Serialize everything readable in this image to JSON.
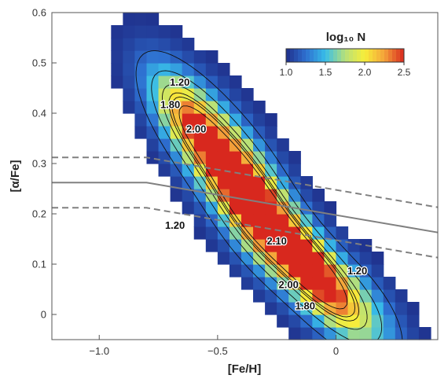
{
  "chart_data": {
    "type": "heatmap",
    "title": "",
    "xlabel": "[Fe/H]",
    "ylabel": "[α/Fe]",
    "xlim": [
      -1.2,
      0.43
    ],
    "ylim": [
      -0.05,
      0.6
    ],
    "x_ticks": [
      -1.0,
      -0.5,
      0.0
    ],
    "x_tick_labels": [
      "−1.0",
      "−0.5",
      "0"
    ],
    "y_ticks": [
      0.0,
      0.1,
      0.2,
      0.3,
      0.4,
      0.5,
      0.6
    ],
    "y_tick_labels": [
      "0",
      "0.1",
      "0.2",
      "0.3",
      "0.4",
      "0.5",
      "0.6"
    ],
    "colorbar": {
      "title": "log₁₀ N",
      "min": 1.0,
      "max": 2.5,
      "ticks": [
        1.0,
        1.5,
        2.0,
        2.5
      ],
      "tick_labels": [
        "1.0",
        "1.5",
        "2.0",
        "2.5"
      ],
      "colormap": [
        "#1f2f8a",
        "#2e6fd0",
        "#38bde8",
        "#b6e07a",
        "#f7ee3a",
        "#f4a23a",
        "#d8281e"
      ]
    },
    "density_model": {
      "background_level": 1.0,
      "threshold": 1.02,
      "blobs": [
        {
          "fe_h": -0.5,
          "alpha_fe": 0.33,
          "sigma_along": 0.16,
          "sigma_across": 0.055,
          "amplitude": 1.2
        },
        {
          "fe_h": -0.65,
          "alpha_fe": 0.4,
          "sigma_along": 0.12,
          "sigma_across": 0.045,
          "amplitude": 0.6
        },
        {
          "fe_h": -0.2,
          "alpha_fe": 0.13,
          "sigma_along": 0.22,
          "sigma_across": 0.05,
          "amplitude": 1.45
        },
        {
          "fe_h": -0.05,
          "alpha_fe": 0.07,
          "sigma_along": 0.15,
          "sigma_across": 0.04,
          "amplitude": 0.7
        },
        {
          "fe_h": -0.35,
          "alpha_fe": 0.22,
          "sigma_along": 0.12,
          "sigma_across": 0.06,
          "amplitude": 0.7
        },
        {
          "fe_h": 0.15,
          "alpha_fe": 0.02,
          "sigma_along": 0.12,
          "sigma_across": 0.04,
          "amplitude": 0.25
        }
      ],
      "ridge_direction": [
        1.0,
        -0.5
      ],
      "bin_size_fe_h": 0.05,
      "bin_size_alpha_fe": 0.025
    },
    "contour_labels": [
      {
        "text": "1.20",
        "fe_h": -0.66,
        "alpha_fe": 0.455
      },
      {
        "text": "1.80",
        "fe_h": -0.7,
        "alpha_fe": 0.41
      },
      {
        "text": "2.00",
        "fe_h": -0.59,
        "alpha_fe": 0.362
      },
      {
        "text": "1.20",
        "fe_h": -0.68,
        "alpha_fe": 0.17
      },
      {
        "text": "2.10",
        "fe_h": -0.25,
        "alpha_fe": 0.139
      },
      {
        "text": "1.20",
        "fe_h": 0.09,
        "alpha_fe": 0.08
      },
      {
        "text": "2.00",
        "fe_h": -0.2,
        "alpha_fe": 0.052
      },
      {
        "text": "1.80",
        "fe_h": -0.13,
        "alpha_fe": 0.01
      }
    ],
    "lines": [
      {
        "name": "",
        "style": "solid",
        "color": "#808080",
        "points": [
          [
            -1.2,
            0.262
          ],
          [
            -0.8,
            0.262
          ],
          [
            0.43,
            0.163
          ]
        ]
      },
      {
        "name": "",
        "style": "dashed",
        "color": "#808080",
        "points": [
          [
            -1.2,
            0.312
          ],
          [
            -0.8,
            0.312
          ],
          [
            0.43,
            0.213
          ]
        ]
      },
      {
        "name": "",
        "style": "dashed",
        "color": "#808080",
        "points": [
          [
            -1.2,
            0.212
          ],
          [
            -0.8,
            0.212
          ],
          [
            0.43,
            0.113
          ]
        ]
      }
    ],
    "grid": false,
    "legend": "none"
  }
}
